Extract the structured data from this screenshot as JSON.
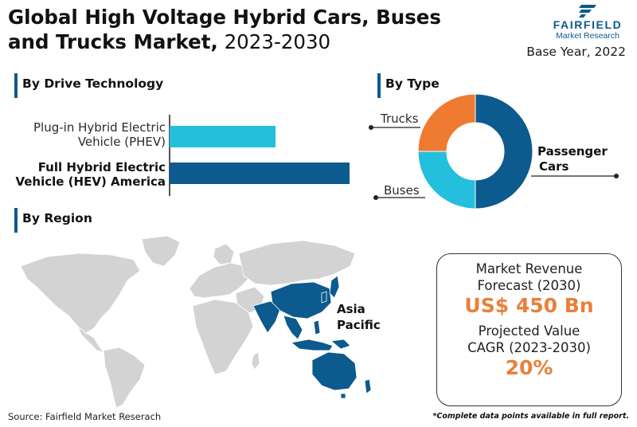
{
  "title": {
    "bold_line1": "Global High Voltage Hybrid Cars, Buses",
    "bold_line2": "and Trucks Market,",
    "years": "2023-2030"
  },
  "logo": {
    "name": "FAIRFIELD",
    "sub": "Market Research"
  },
  "base_year": "Base Year, 2022",
  "sections": {
    "drive": "By Drive Technology",
    "type": "By Type",
    "region": "By Region"
  },
  "drive_labels": [
    {
      "line1": "Plug-in Hybrid Electric",
      "line2": "Vehicle (PHEV)"
    },
    {
      "line1": "Full Hybrid Electric",
      "line2": "Vehicle (HEV) America"
    }
  ],
  "type_labels": {
    "trucks": "Trucks",
    "buses": "Buses",
    "passenger_line1": "Passenger",
    "passenger_line2": "Cars"
  },
  "region_label": {
    "line1": "Asia",
    "line2": "Pacific"
  },
  "stats": {
    "revenue_label_1": "Market Revenue",
    "revenue_label_2": "Forecast (2030)",
    "revenue_value": "US$ 450 Bn",
    "cagr_label_1": "Projected Value",
    "cagr_label_2": "CAGR (2023-2030)",
    "cagr_value": "20%"
  },
  "source": "Source: Fairfield Market Reserach",
  "footnote": "*Complete data points available in full report.",
  "colors": {
    "navy": "#0c5a8e",
    "cyan": "#23bfdc",
    "orange": "#ee7b30",
    "map_grey": "#d3d3d3"
  },
  "chart_data": [
    {
      "type": "bar",
      "orientation": "horizontal",
      "categories": [
        "Plug-in Hybrid Electric Vehicle (PHEV)",
        "Full Hybrid Electric Vehicle (HEV) America"
      ],
      "values": [
        59,
        100
      ],
      "value_unit": "relative share of largest segment (%)",
      "colors": [
        "#23bfdc",
        "#0c5a8e"
      ]
    },
    {
      "type": "pie",
      "donut": true,
      "categories": [
        "Passenger Cars",
        "Buses",
        "Trucks"
      ],
      "values": [
        50,
        25,
        25
      ],
      "colors": [
        "#0c5a8e",
        "#23bfdc",
        "#ee7b30"
      ]
    }
  ]
}
